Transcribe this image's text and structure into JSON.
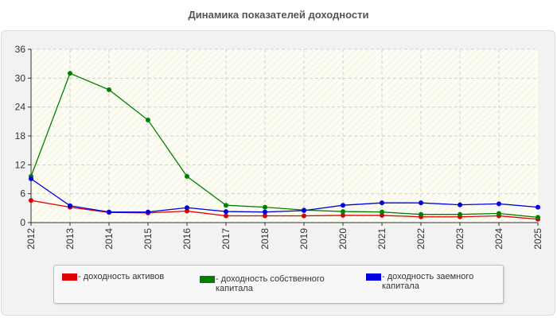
{
  "chart_data": {
    "type": "line",
    "title": "Динамика показателей доходности",
    "x": [
      "2012",
      "2013",
      "2014",
      "2015",
      "2016",
      "2017",
      "2018",
      "2019",
      "2020",
      "2021",
      "2022",
      "2023",
      "2024",
      "2025"
    ],
    "ylim": [
      0,
      36
    ],
    "yticks": [
      0,
      6,
      12,
      18,
      24,
      30,
      36
    ],
    "grid": true,
    "legend_position": "bottom",
    "series": [
      {
        "name": "- доходность активов",
        "color": "#e00000",
        "values": [
          4.6,
          3.2,
          2.1,
          2.0,
          2.4,
          1.4,
          1.4,
          1.4,
          1.5,
          1.5,
          1.2,
          1.2,
          1.4,
          0.7
        ]
      },
      {
        "name": "- доходность собственного капитала",
        "color": "#008000",
        "values": [
          9.6,
          31.0,
          27.6,
          21.3,
          9.6,
          3.6,
          3.2,
          2.6,
          2.3,
          2.2,
          1.7,
          1.7,
          1.9,
          1.1
        ]
      },
      {
        "name": "- доходность заемного капитала",
        "color": "#0000e0",
        "values": [
          9.1,
          3.5,
          2.2,
          2.2,
          3.1,
          2.3,
          2.2,
          2.5,
          3.6,
          4.1,
          4.1,
          3.7,
          3.9,
          3.2
        ]
      }
    ]
  }
}
